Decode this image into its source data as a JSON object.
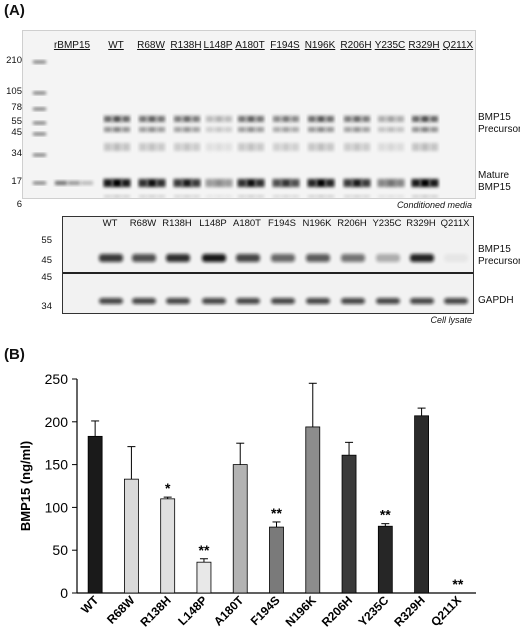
{
  "panel_a": {
    "label": "(A)",
    "top_blot": {
      "lanes": [
        "rBMP15",
        "WT",
        "R68W",
        "R138H",
        "L148P",
        "A180T",
        "F194S",
        "N196K",
        "R206H",
        "Y235C",
        "R329H",
        "Q211X"
      ],
      "markers": [
        "210",
        "105",
        "78",
        "55",
        "45",
        "34",
        "17",
        "6"
      ],
      "label_precursor_1": "BMP15",
      "label_precursor_2": "Precursor",
      "label_mature_1": "Mature",
      "label_mature_2": "BMP15",
      "caption": "Conditioned media"
    },
    "bottom_blot": {
      "lanes": [
        "WT",
        "R68W",
        "R138H",
        "L148P",
        "A180T",
        "F194S",
        "N196K",
        "R206H",
        "Y235C",
        "R329H",
        "Q211X"
      ],
      "markers_upper": [
        "55",
        "45"
      ],
      "markers_lower": [
        "45",
        "34"
      ],
      "label_precursor_1": "BMP15",
      "label_precursor_2": "Precursor",
      "label_gapdh": "GAPDH",
      "caption": "Cell lysate"
    }
  },
  "panel_b": {
    "label": "(B)"
  },
  "chart_data": {
    "type": "bar",
    "categories": [
      "WT",
      "R68W",
      "R138H",
      "L148P",
      "A180T",
      "F194S",
      "N196K",
      "R206H",
      "Y235C",
      "R329H",
      "Q211X"
    ],
    "values": [
      183,
      133,
      110,
      36,
      150,
      77,
      194,
      161,
      78,
      207,
      0
    ],
    "errors": [
      18,
      38,
      2,
      4,
      25,
      6,
      51,
      15,
      3,
      9,
      0
    ],
    "significance": [
      "",
      "",
      "*",
      "**",
      "",
      "**",
      "",
      "",
      "**",
      "",
      "**"
    ],
    "bar_colors": [
      "#1a1a1a",
      "#d9d9d9",
      "#e0e0e0",
      "#e8e8e8",
      "#b3b3b3",
      "#7a7a7a",
      "#8c8c8c",
      "#3a3a3a",
      "#262626",
      "#2b2b2b",
      "#ffffff"
    ],
    "ylabel": "BMP15 (ng/ml)",
    "ylim": [
      0,
      250
    ],
    "yticks": [
      "0",
      "50",
      "100",
      "150",
      "200",
      "250"
    ],
    "grid": false
  }
}
